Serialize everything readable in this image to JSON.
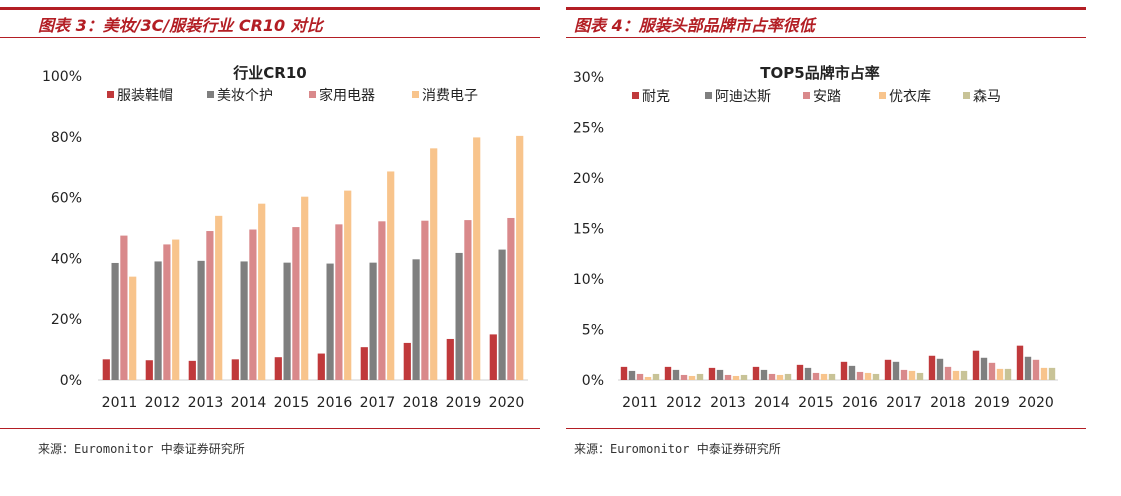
{
  "colors": {
    "accent": "#b31e24",
    "series": [
      "#c0393b",
      "#7f7f7f",
      "#d9898b",
      "#f8c48c",
      "#c8c397"
    ]
  },
  "panels": [
    {
      "figure_title": "图表 3：美妆/3C/服装行业 CR10 对比",
      "source": "来源：Euromonitor 中泰证券研究所"
    },
    {
      "figure_title": "图表 4：服装头部品牌市占率很低",
      "source": "来源：Euromonitor 中泰证券研究所"
    }
  ],
  "chart_data": [
    {
      "type": "bar",
      "title": "行业CR10",
      "xlabel": "",
      "ylabel": "",
      "categories": [
        "2011",
        "2012",
        "2013",
        "2014",
        "2015",
        "2016",
        "2017",
        "2018",
        "2019",
        "2020"
      ],
      "ylim": [
        0,
        100
      ],
      "yticks": [
        "0%",
        "20%",
        "40%",
        "60%",
        "80%",
        "100%"
      ],
      "legend_position": "top",
      "grid": false,
      "series": [
        {
          "name": "服装鞋帽",
          "values": [
            6.8,
            6.5,
            6.3,
            6.8,
            7.5,
            8.7,
            10.8,
            12.2,
            13.5,
            15.0
          ]
        },
        {
          "name": "美妆个护",
          "values": [
            38.5,
            39.0,
            39.2,
            39.0,
            38.6,
            38.3,
            38.6,
            39.7,
            41.8,
            42.9
          ]
        },
        {
          "name": "家用电器",
          "values": [
            47.5,
            44.6,
            49.0,
            49.5,
            50.3,
            51.2,
            52.2,
            52.4,
            52.6,
            53.3
          ]
        },
        {
          "name": "消费电子",
          "values": [
            34.0,
            46.2,
            54.0,
            58.0,
            60.3,
            62.3,
            68.6,
            76.2,
            79.8,
            80.3
          ]
        }
      ]
    },
    {
      "type": "bar",
      "title": "TOP5品牌市占率",
      "xlabel": "",
      "ylabel": "",
      "categories": [
        "2011",
        "2012",
        "2013",
        "2014",
        "2015",
        "2016",
        "2017",
        "2018",
        "2019",
        "2020"
      ],
      "ylim": [
        0,
        30
      ],
      "yticks": [
        "0%",
        "5%",
        "10%",
        "15%",
        "20%",
        "25%",
        "30%"
      ],
      "legend_position": "top",
      "grid": false,
      "series": [
        {
          "name": "耐克",
          "values": [
            1.3,
            1.3,
            1.2,
            1.3,
            1.5,
            1.8,
            2.0,
            2.4,
            2.9,
            3.4
          ]
        },
        {
          "name": "阿迪达斯",
          "values": [
            0.9,
            1.0,
            1.0,
            1.0,
            1.2,
            1.4,
            1.8,
            2.1,
            2.2,
            2.3
          ]
        },
        {
          "name": "安踏",
          "values": [
            0.6,
            0.5,
            0.5,
            0.6,
            0.7,
            0.8,
            1.0,
            1.3,
            1.7,
            2.0
          ]
        },
        {
          "name": "优衣库",
          "values": [
            0.3,
            0.4,
            0.4,
            0.5,
            0.6,
            0.7,
            0.9,
            0.9,
            1.1,
            1.2
          ]
        },
        {
          "name": "森马",
          "values": [
            0.6,
            0.6,
            0.5,
            0.6,
            0.6,
            0.6,
            0.7,
            0.9,
            1.1,
            1.2
          ]
        }
      ]
    }
  ]
}
